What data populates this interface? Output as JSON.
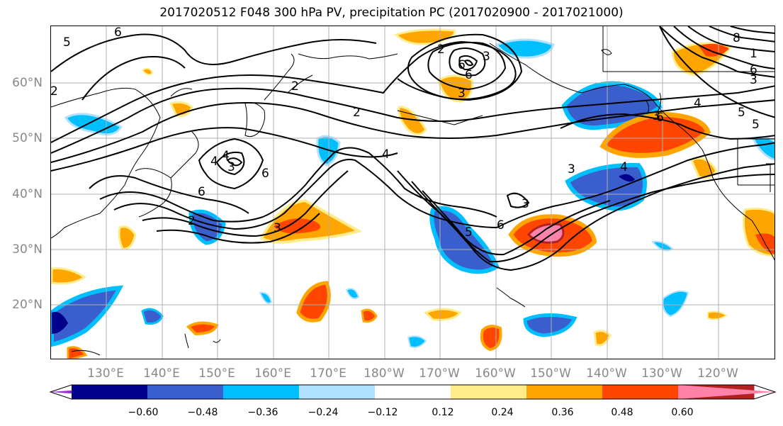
{
  "title": "2017020512 F048 300 hPa PV, precipitation PC (2017020900 - 2017021000)",
  "lat_ticks": [
    "60°N",
    "50°N",
    "40°N",
    "30°N",
    "20°N"
  ],
  "lon_ticks": [
    "130°E",
    "140°E",
    "150°E",
    "160°E",
    "170°E",
    "180°W",
    "170°W",
    "160°W",
    "150°W",
    "140°W",
    "130°W",
    "120°W"
  ],
  "contour_labels": [
    "6",
    "2",
    "5",
    "6",
    "3",
    "4",
    "6",
    "2",
    "4",
    "6",
    "6",
    "6",
    "3",
    "3",
    "2",
    "4",
    "3",
    "8",
    "1",
    "6",
    "3",
    "2",
    "4",
    "5",
    "5",
    "3",
    "4",
    "3",
    "6",
    "5",
    "2",
    "3"
  ],
  "colorbar": {
    "colors": [
      "#9932cc",
      "#00008b",
      "#3a5fcd",
      "#00bfff",
      "#b0e2ff",
      "#ffffff",
      "#ffec8b",
      "#ffa500",
      "#ff4500",
      "#b22222",
      "#ff82ab"
    ],
    "tick_labels": [
      "−0.60",
      "−0.48",
      "−0.36",
      "−0.24",
      "−0.12",
      "0.12",
      "0.24",
      "0.36",
      "0.48",
      "0.60"
    ]
  }
}
